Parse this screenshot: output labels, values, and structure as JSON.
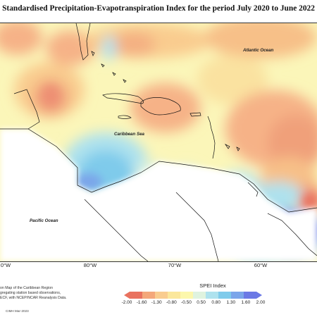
{
  "title": "Standardised Precipitation-Evapotranspiration Index for the period July 2020 to June 2022",
  "map": {
    "labels": {
      "atlantic": "Atlantic Ocean",
      "caribbean": "Caribbean Sea",
      "pacific": "Pacific Ocean"
    },
    "longitudes": [
      "0°W",
      "80°W",
      "70°W",
      "60°W"
    ]
  },
  "notes": [
    "on Map of the Caribbean Region",
    "gregating station based observations,",
    "ECF, with NCEP/NCAR Reanalysis Data."
  ],
  "legend": {
    "title": "SPEI Index",
    "ticks": [
      "-2.00",
      "-1.60",
      "-1.30",
      "-0.80",
      "-0.50",
      "0.50",
      "0.80",
      "1.30",
      "1.60",
      "2.00"
    ],
    "colors": [
      "#e9725f",
      "#f4a77a",
      "#f9cc8f",
      "#fbe79b",
      "#fcf7ac",
      "#dff3df",
      "#aee2ee",
      "#7fcbeb",
      "#7aa5ea",
      "#6b79e5"
    ]
  },
  "credit": "CIMH Mar-2023",
  "colors": {
    "neutral": "#fbf6b9",
    "land": "#ffffff",
    "coast": "#111111"
  }
}
